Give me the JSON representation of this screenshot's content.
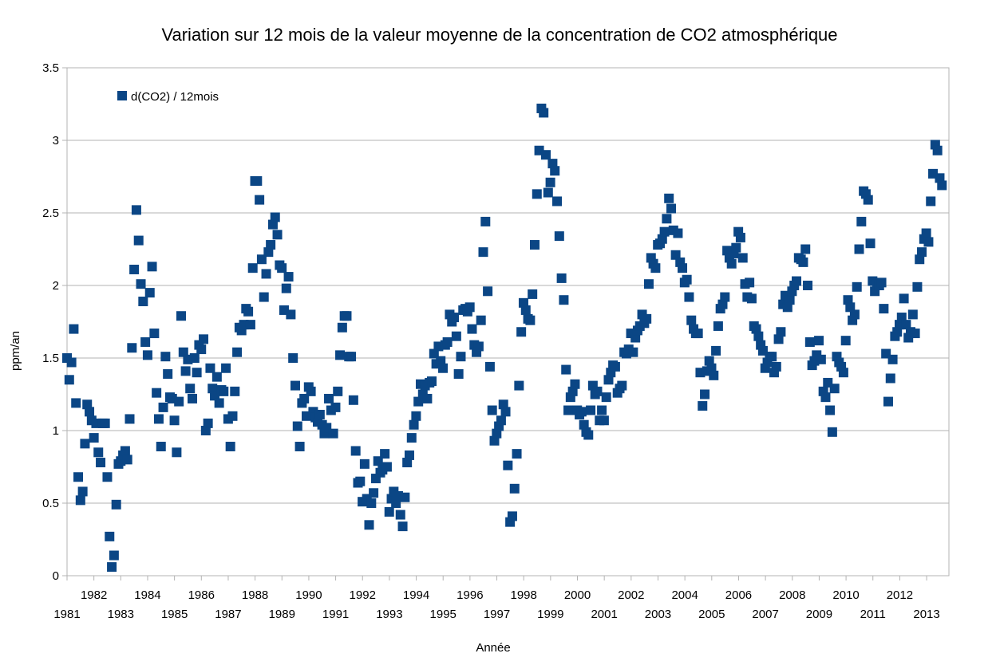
{
  "chart_data": {
    "type": "scatter",
    "title": "Variation sur 12 mois de la valeur moyenne de la concentration de CO2 atmosphérique",
    "xlabel": "Année",
    "ylabel": "ppm/an",
    "xlim": [
      1981,
      2013.83
    ],
    "ylim": [
      0,
      3.5
    ],
    "y_ticks": [
      "0",
      "0.5",
      "1",
      "1.5",
      "2",
      "2.5",
      "3",
      "3.5"
    ],
    "x_ticks_upper": [
      "1982",
      "1984",
      "1986",
      "1988",
      "1990",
      "1992",
      "1994",
      "1996",
      "1998",
      "2000",
      "2002",
      "2004",
      "2006",
      "2008",
      "2010",
      "2012"
    ],
    "x_ticks_lower": [
      "1981",
      "1983",
      "1985",
      "1987",
      "1989",
      "1991",
      "1993",
      "1995",
      "1997",
      "1999",
      "2001",
      "2003",
      "2005",
      "2007",
      "2009",
      "2011",
      "2013"
    ],
    "grid": "horizontal",
    "legend_position": "top-left",
    "marker": "square",
    "series": [
      {
        "name": "d(CO2) / 12mois",
        "color": "#0b4685",
        "x_start": 1981,
        "step": 0.0833,
        "values": [
          1.5,
          1.35,
          1.47,
          1.7,
          1.19,
          0.68,
          0.52,
          0.58,
          0.91,
          1.18,
          1.13,
          1.07,
          0.95,
          1.05,
          0.85,
          0.78,
          1.05,
          1.05,
          0.68,
          0.27,
          0.06,
          0.14,
          0.49,
          0.77,
          0.79,
          0.83,
          0.86,
          0.8,
          1.08,
          1.57,
          2.11,
          2.52,
          2.31,
          2.01,
          1.89,
          1.61,
          1.52,
          1.95,
          2.13,
          1.67,
          1.26,
          1.08,
          0.89,
          1.16,
          1.51,
          1.39,
          1.23,
          1.22,
          1.07,
          0.85,
          1.2,
          1.79,
          1.54,
          1.41,
          1.49,
          1.29,
          1.22,
          1.5,
          1.4,
          1.59,
          1.56,
          1.63,
          1.0,
          1.05,
          1.43,
          1.29,
          1.24,
          1.37,
          1.19,
          1.28,
          1.27,
          1.43,
          1.08,
          0.89,
          1.1,
          1.27,
          1.54,
          1.71,
          1.69,
          1.73,
          1.84,
          1.82,
          1.73,
          2.12,
          2.72,
          2.72,
          2.59,
          2.18,
          1.92,
          2.08,
          2.23,
          2.28,
          2.42,
          2.47,
          2.35,
          2.14,
          2.12,
          1.83,
          1.98,
          2.06,
          1.8,
          1.5,
          1.31,
          1.03,
          0.89,
          1.19,
          1.22,
          1.1,
          1.3,
          1.27,
          1.13,
          1.09,
          1.06,
          1.11,
          1.04,
          0.98,
          1.02,
          1.22,
          1.14,
          0.98,
          1.16,
          1.27,
          1.52,
          1.71,
          1.79,
          1.79,
          1.51,
          1.51,
          1.21,
          0.86,
          0.64,
          0.65,
          0.51,
          0.77,
          0.53,
          0.35,
          0.5,
          0.57,
          0.67,
          0.79,
          0.71,
          0.73,
          0.84,
          0.75,
          0.44,
          0.53,
          0.58,
          0.5,
          0.55,
          0.42,
          0.34,
          0.54,
          0.78,
          0.83,
          0.95,
          1.04,
          1.1,
          1.2,
          1.32,
          1.25,
          1.31,
          1.22,
          1.33,
          1.34,
          1.53,
          1.46,
          1.58,
          1.48,
          1.43,
          1.59,
          1.61,
          1.8,
          1.75,
          1.78,
          1.65,
          1.39,
          1.51,
          1.83,
          1.84,
          1.82,
          1.85,
          1.7,
          1.59,
          1.54,
          1.58,
          1.76,
          2.23,
          2.44,
          1.96,
          1.44,
          1.14,
          0.93,
          0.98,
          1.03,
          1.07,
          1.18,
          1.13,
          0.76,
          0.37,
          0.41,
          0.6,
          0.84,
          1.31,
          1.68,
          1.88,
          1.83,
          1.77,
          1.76,
          1.94,
          2.28,
          2.63,
          2.93,
          3.22,
          3.19,
          2.9,
          2.64,
          2.71,
          2.84,
          2.79,
          2.58,
          2.34,
          2.05,
          1.9,
          1.42,
          1.14,
          1.23,
          1.27,
          1.32,
          1.14,
          1.11,
          1.13,
          1.04,
          0.99,
          0.97,
          1.14,
          1.31,
          1.25,
          1.27,
          1.07,
          1.14,
          1.07,
          1.23,
          1.35,
          1.4,
          1.45,
          1.44,
          1.26,
          1.29,
          1.31,
          1.54,
          1.53,
          1.56,
          1.67,
          1.54,
          1.64,
          1.69,
          1.72,
          1.8,
          1.74,
          1.77,
          2.01,
          2.19,
          2.15,
          2.12,
          2.28,
          2.29,
          2.32,
          2.37,
          2.46,
          2.6,
          2.53,
          2.38,
          2.21,
          2.36,
          2.16,
          2.12,
          2.02,
          2.04,
          1.92,
          1.76,
          1.7,
          1.67,
          1.67,
          1.4,
          1.17,
          1.25,
          1.41,
          1.48,
          1.43,
          1.38,
          1.55,
          1.72,
          1.84,
          1.87,
          1.92,
          2.24,
          2.19,
          2.15,
          2.22,
          2.26,
          2.37,
          2.33,
          2.19,
          2.01,
          1.92,
          2.02,
          1.91,
          1.72,
          1.7,
          1.65,
          1.59,
          1.55,
          1.43,
          1.47,
          1.51,
          1.51,
          1.4,
          1.44,
          1.63,
          1.68,
          1.87,
          1.93,
          1.85,
          1.9,
          1.96,
          2.0,
          2.03,
          2.19,
          2.18,
          2.16,
          2.25,
          2.0,
          1.61,
          1.45,
          1.48,
          1.52,
          1.62,
          1.49,
          1.27,
          1.23,
          1.33,
          1.14,
          0.99,
          1.29,
          1.51,
          1.47,
          1.44,
          1.4,
          1.62,
          1.9,
          1.85,
          1.76,
          1.8,
          1.99,
          2.25,
          2.44,
          2.65,
          2.63,
          2.59,
          2.29,
          2.03,
          1.96,
          2.01,
          2.0,
          2.02,
          1.84,
          1.53,
          1.2,
          1.36,
          1.49,
          1.65,
          1.68,
          1.73,
          1.78,
          1.91,
          1.73,
          1.64,
          1.68,
          1.8,
          1.67,
          1.99,
          2.18,
          2.23,
          2.32,
          2.36,
          2.3,
          2.58,
          2.77,
          2.97,
          2.93,
          2.74,
          2.69
        ]
      }
    ]
  }
}
